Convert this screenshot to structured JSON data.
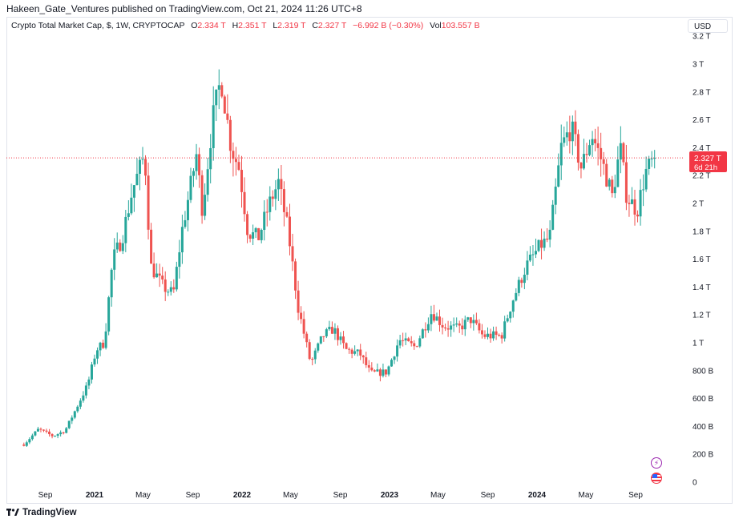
{
  "header": {
    "publisher_line": "Hakeen_Gate_Ventures published on TradingView.com, Oct 21, 2024 11:26 UTC+8"
  },
  "legend": {
    "symbol": "Crypto Total Market Cap, $, 1W, CRYPTOCAP",
    "open_label": "O",
    "open": "2.334 T",
    "high_label": "H",
    "high": "2.351 T",
    "low_label": "L",
    "low": "2.319 T",
    "close_label": "C",
    "close": "2.327 T",
    "change": "−6.992 B (−0.30%)",
    "vol_label": "Vol",
    "volume": "103.557 B"
  },
  "currency_button": "USD",
  "price_tag": {
    "price": "2.327 T",
    "countdown": "6d 21h"
  },
  "footer": {
    "brand": "TradingView"
  },
  "colors": {
    "up": "#26a69a",
    "down": "#ef5350",
    "last_price": "#f23645"
  },
  "icons": [
    "tradingview-logo-icon",
    "lightning-icon",
    "us-flag-icon"
  ],
  "chart_data": {
    "type": "candlestick",
    "interval": "1W",
    "x_tick_labels": [
      "Sep",
      "2021",
      "May",
      "Sep",
      "2022",
      "May",
      "Sep",
      "2023",
      "May",
      "Sep",
      "2024",
      "May",
      "Sep"
    ],
    "x_tick_dates": [
      "2020-09-01",
      "2021-01-01",
      "2021-05-01",
      "2021-09-01",
      "2022-01-01",
      "2022-05-01",
      "2022-09-01",
      "2023-01-01",
      "2023-05-01",
      "2023-09-01",
      "2024-01-01",
      "2024-05-01",
      "2024-09-01"
    ],
    "y_tick_labels": [
      "0",
      "200 B",
      "400 B",
      "600 B",
      "800 B",
      "1 T",
      "1.2 T",
      "1.4 T",
      "1.6 T",
      "1.8 T",
      "2 T",
      "2.2 T",
      "2.4 T",
      "2.6 T",
      "2.8 T",
      "3 T",
      "3.2 T"
    ],
    "y_tick_values": [
      0,
      0.2,
      0.4,
      0.6,
      0.8,
      1.0,
      1.2,
      1.4,
      1.6,
      1.8,
      2.0,
      2.2,
      2.4,
      2.6,
      2.8,
      3.0,
      3.2
    ],
    "y_unit": "T",
    "ylim": [
      0,
      3.2
    ],
    "last_price": 2.327,
    "series": [
      {
        "date": "2020-07-10",
        "close": 0.27
      },
      {
        "date": "2020-08-15",
        "close": 0.38
      },
      {
        "date": "2020-09-20",
        "close": 0.33
      },
      {
        "date": "2020-10-20",
        "close": 0.37
      },
      {
        "date": "2020-11-15",
        "close": 0.52
      },
      {
        "date": "2020-12-15",
        "close": 0.7
      },
      {
        "date": "2021-01-05",
        "close": 0.95
      },
      {
        "date": "2021-01-25",
        "close": 1.0
      },
      {
        "date": "2021-02-15",
        "close": 1.6
      },
      {
        "date": "2021-03-10",
        "close": 1.75
      },
      {
        "date": "2021-04-05",
        "close": 2.1
      },
      {
        "date": "2021-05-05",
        "close": 2.35
      },
      {
        "date": "2021-05-20",
        "close": 1.55
      },
      {
        "date": "2021-06-20",
        "close": 1.4
      },
      {
        "date": "2021-07-15",
        "close": 1.35
      },
      {
        "date": "2021-08-05",
        "close": 1.8
      },
      {
        "date": "2021-08-25",
        "close": 2.1
      },
      {
        "date": "2021-09-10",
        "close": 2.35
      },
      {
        "date": "2021-09-25",
        "close": 1.95
      },
      {
        "date": "2021-10-20",
        "close": 2.6
      },
      {
        "date": "2021-11-10",
        "close": 2.9
      },
      {
        "date": "2021-12-05",
        "close": 2.4
      },
      {
        "date": "2021-12-25",
        "close": 2.25
      },
      {
        "date": "2022-01-15",
        "close": 1.8
      },
      {
        "date": "2022-02-10",
        "close": 1.75
      },
      {
        "date": "2022-03-10",
        "close": 2.0
      },
      {
        "date": "2022-04-01",
        "close": 2.15
      },
      {
        "date": "2022-04-25",
        "close": 1.8
      },
      {
        "date": "2022-05-20",
        "close": 1.25
      },
      {
        "date": "2022-06-20",
        "close": 0.85
      },
      {
        "date": "2022-07-20",
        "close": 1.05
      },
      {
        "date": "2022-08-15",
        "close": 1.1
      },
      {
        "date": "2022-09-15",
        "close": 0.95
      },
      {
        "date": "2022-10-20",
        "close": 0.92
      },
      {
        "date": "2022-11-15",
        "close": 0.78
      },
      {
        "date": "2022-12-25",
        "close": 0.79
      },
      {
        "date": "2023-01-25",
        "close": 1.02
      },
      {
        "date": "2023-03-05",
        "close": 0.97
      },
      {
        "date": "2023-04-15",
        "close": 1.22
      },
      {
        "date": "2023-05-15",
        "close": 1.12
      },
      {
        "date": "2023-06-20",
        "close": 1.1
      },
      {
        "date": "2023-07-20",
        "close": 1.17
      },
      {
        "date": "2023-08-20",
        "close": 1.05
      },
      {
        "date": "2023-10-05",
        "close": 1.05
      },
      {
        "date": "2023-11-01",
        "close": 1.3
      },
      {
        "date": "2023-12-05",
        "close": 1.55
      },
      {
        "date": "2024-01-10",
        "close": 1.7
      },
      {
        "date": "2024-02-01",
        "close": 1.75
      },
      {
        "date": "2024-03-01",
        "close": 2.4
      },
      {
        "date": "2024-03-25",
        "close": 2.55
      },
      {
        "date": "2024-04-20",
        "close": 2.25
      },
      {
        "date": "2024-05-15",
        "close": 2.5
      },
      {
        "date": "2024-06-10",
        "close": 2.3
      },
      {
        "date": "2024-07-05",
        "close": 2.05
      },
      {
        "date": "2024-07-25",
        "close": 2.4
      },
      {
        "date": "2024-08-10",
        "close": 2.05
      },
      {
        "date": "2024-09-05",
        "close": 1.95
      },
      {
        "date": "2024-09-25",
        "close": 2.22
      },
      {
        "date": "2024-10-20",
        "close": 2.33
      }
    ]
  }
}
